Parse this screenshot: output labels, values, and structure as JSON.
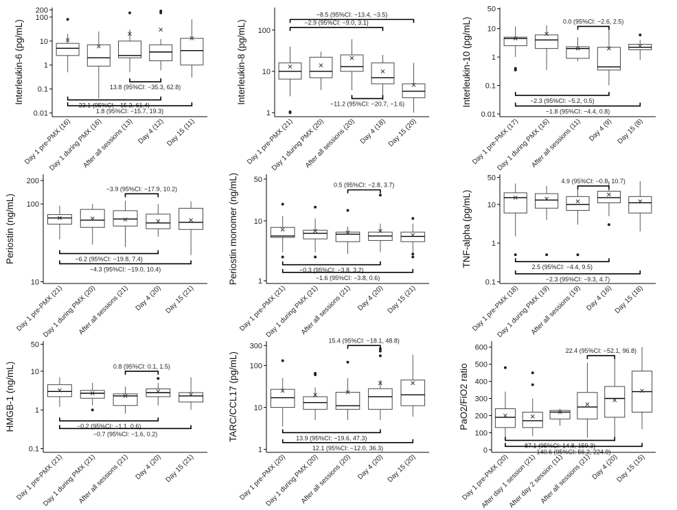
{
  "chart_data": [
    {
      "type": "box",
      "ylabel": "Interleukin-6 (pg/mL)",
      "scale": "log",
      "ylim": [
        0.007,
        250
      ],
      "ticks": [
        {
          "v": 0.01,
          "t": "0.01"
        },
        {
          "v": 0.1,
          "t": "0.1"
        },
        {
          "v": 1,
          "t": "1"
        },
        {
          "v": 10,
          "t": "10"
        },
        {
          "v": 100,
          "t": "100"
        },
        {
          "v": 200,
          "t": "200"
        }
      ],
      "categories": [
        "Day 1 pre-PMX (16)",
        "Day 1 during PMX (16)",
        "After all sessions (13)",
        "Day 4 (12)",
        "Day 15 (11)"
      ],
      "boxes": [
        {
          "whislo": 0.5,
          "q1": 2.5,
          "med": 5,
          "q3": 8,
          "whishi": 20,
          "mean": 11,
          "outliers": [
            80
          ]
        },
        {
          "whislo": 0.04,
          "q1": 0.9,
          "med": 2,
          "q3": 7,
          "whishi": 25,
          "mean": 6,
          "outliers": []
        },
        {
          "whislo": 0.5,
          "q1": 2,
          "med": 2.5,
          "q3": 10,
          "whishi": 30,
          "mean": 20,
          "outliers": [
            150
          ]
        },
        {
          "whislo": 0.6,
          "q1": 1.5,
          "med": 3.5,
          "q3": 7,
          "whishi": 12,
          "mean": 30,
          "outliers": [
            150,
            180
          ]
        },
        {
          "whislo": 0.3,
          "q1": 1,
          "med": 4,
          "q3": 13,
          "whishi": 80,
          "mean": 13,
          "outliers": []
        }
      ],
      "annotations": [
        {
          "from": 2,
          "to": 3,
          "y": 0.2,
          "dir": "up",
          "text": "13.8 (95%CI: −35.3, 62.8)"
        },
        {
          "from": 0,
          "to": 3,
          "y": 0.035,
          "dir": "up",
          "text": "23.1 (95%CI: −15.3, 61.4)"
        },
        {
          "from": 0,
          "to": 4,
          "y": 0.02,
          "dir": "up",
          "text": "1.8 (95%CI: −15.7, 19.3)"
        }
      ]
    },
    {
      "type": "box",
      "ylabel": "Interleukin-8 (pg/mL)",
      "scale": "log",
      "ylim": [
        0.8,
        350
      ],
      "ticks": [
        {
          "v": 1,
          "t": "1"
        },
        {
          "v": 10,
          "t": "10"
        },
        {
          "v": 100,
          "t": "100"
        }
      ],
      "categories": [
        "Day 1 pre-PMX (21)",
        "Day 1 during PMX (20)",
        "After all sessions (20)",
        "Day 4 (18)",
        "Day 15 (20)"
      ],
      "boxes": [
        {
          "whislo": 2.5,
          "q1": 6.5,
          "med": 10,
          "q3": 16,
          "whishi": 40,
          "mean": 13,
          "outliers": [
            1,
            1.05
          ]
        },
        {
          "whislo": 3.5,
          "q1": 7,
          "med": 10,
          "q3": 22,
          "whishi": 30,
          "mean": 14,
          "outliers": []
        },
        {
          "whislo": 3.5,
          "q1": 10,
          "med": 13,
          "q3": 25,
          "whishi": 60,
          "mean": 21,
          "outliers": []
        },
        {
          "whislo": 2,
          "q1": 5,
          "med": 7,
          "q3": 16,
          "whishi": 25,
          "mean": 10,
          "outliers": []
        },
        {
          "whislo": 1,
          "q1": 2.3,
          "med": 3.3,
          "q3": 5,
          "whishi": 16,
          "mean": 4.7,
          "outliers": []
        }
      ],
      "annotations": [
        {
          "from": 0,
          "to": 4,
          "y": 180,
          "dir": "down",
          "text": "−8.5 (95%CI: −13.4, −3.5)"
        },
        {
          "from": 0,
          "to": 3,
          "y": 115,
          "dir": "down",
          "text": "−2.9 (95%CI: −9.0, 3.1)"
        },
        {
          "from": 2,
          "to": 3,
          "y": 2.2,
          "dir": "up",
          "text": "−11.2 (95%CI: −20.7, −1.6)"
        }
      ]
    },
    {
      "type": "box",
      "ylabel": "Interleukin-10 (pg/mL)",
      "scale": "log",
      "ylim": [
        0.008,
        55
      ],
      "ticks": [
        {
          "v": 0.01,
          "t": "0.01"
        },
        {
          "v": 0.1,
          "t": "0.1"
        },
        {
          "v": 1,
          "t": "1"
        },
        {
          "v": 10,
          "t": "10"
        },
        {
          "v": 50,
          "t": "50"
        }
      ],
      "categories": [
        "Day 1 pre-PMX (17)",
        "Day 1 during PMX (16)",
        "After all sessions (11)",
        "Day 4 (9)",
        "Day 15 (8)"
      ],
      "boxes": [
        {
          "whislo": 1,
          "q1": 2.5,
          "med": 4.5,
          "q3": 5,
          "whishi": 12,
          "mean": 4.5,
          "outliers": [
            0.35,
            0.4
          ]
        },
        {
          "whislo": 0.35,
          "q1": 2,
          "med": 4,
          "q3": 6,
          "whishi": 13,
          "mean": 6.5,
          "outliers": []
        },
        {
          "whislo": 0.7,
          "q1": 0.9,
          "med": 2,
          "q3": 2.3,
          "whishi": 5,
          "mean": 2,
          "outliers": []
        },
        {
          "whislo": 0.1,
          "q1": 0.35,
          "med": 0.45,
          "q3": 2.2,
          "whishi": 12,
          "mean": 2,
          "outliers": []
        },
        {
          "whislo": 0.8,
          "q1": 1.8,
          "med": 2.2,
          "q3": 2.8,
          "whishi": 4,
          "mean": 2.4,
          "outliers": [
            6
          ]
        }
      ],
      "annotations": [
        {
          "from": 2,
          "to": 3,
          "y": 12,
          "dir": "down",
          "text": "0.0 (95%CI: −2.6, 2.5)"
        },
        {
          "from": 0,
          "to": 3,
          "y": 0.045,
          "dir": "up",
          "text": "−2.3 (95%CI: −5.2, 0.5)"
        },
        {
          "from": 0,
          "to": 4,
          "y": 0.019,
          "dir": "up",
          "text": "−1.8 (95%CI: −4.4, 0.8)"
        }
      ]
    },
    {
      "type": "box",
      "ylabel": "Periostin (ng/mL)",
      "scale": "log",
      "ylim": [
        9.5,
        240
      ],
      "ticks": [
        {
          "v": 10,
          "t": "10"
        },
        {
          "v": 100,
          "t": "100"
        },
        {
          "v": 200,
          "t": "200"
        }
      ],
      "categories": [
        "Day 1 pre-PMX (21)",
        "Day 1 during PMX (20)",
        "After all sessions (21)",
        "Day 4 (20)",
        "Day 15 (21)"
      ],
      "boxes": [
        {
          "whislo": 35,
          "q1": 55,
          "med": 66,
          "q3": 73,
          "whishi": 95,
          "mean": 66,
          "outliers": []
        },
        {
          "whislo": 30,
          "q1": 50,
          "med": 62,
          "q3": 85,
          "whishi": 100,
          "mean": 65,
          "outliers": []
        },
        {
          "whislo": 28,
          "q1": 52,
          "med": 64,
          "q3": 82,
          "whishi": 110,
          "mean": 63,
          "outliers": []
        },
        {
          "whislo": 38,
          "q1": 48,
          "med": 57,
          "q3": 74,
          "whishi": 100,
          "mean": 60,
          "outliers": []
        },
        {
          "whislo": 22,
          "q1": 47,
          "med": 58,
          "q3": 88,
          "whishi": 108,
          "mean": 62,
          "outliers": []
        }
      ],
      "annotations": [
        {
          "from": 2,
          "to": 3,
          "y": 135,
          "dir": "down",
          "text": "−3.9 (95%CI: −17.9, 10.2)"
        },
        {
          "from": 0,
          "to": 3,
          "y": 23,
          "dir": "up",
          "text": "−6.2 (95%CI: −19.8, 7.4)"
        },
        {
          "from": 0,
          "to": 4,
          "y": 17,
          "dir": "up",
          "text": "−4.3 (95%CI: −19.0, 10.4)"
        }
      ]
    },
    {
      "type": "box",
      "ylabel": "Periostin monomer (ng/mL)",
      "scale": "log",
      "ylim": [
        0.9,
        60
      ],
      "ticks": [
        {
          "v": 1,
          "t": "1"
        },
        {
          "v": 10,
          "t": "10"
        },
        {
          "v": 50,
          "t": "50"
        }
      ],
      "categories": [
        "Day 1 pre-PMX (21)",
        "Day 1 during PMX (21)",
        "After all sessions (21)",
        "Day 4 (20)",
        "Day 15 (21)"
      ],
      "boxes": [
        {
          "whislo": 3,
          "q1": 5.3,
          "med": 5.6,
          "q3": 7.8,
          "whishi": 12,
          "mean": 7.2,
          "outliers": [
            19,
            2.5
          ]
        },
        {
          "whislo": 3,
          "q1": 5,
          "med": 6.2,
          "q3": 7,
          "whishi": 11,
          "mean": 6.8,
          "outliers": [
            17,
            2.5
          ]
        },
        {
          "whislo": 2.8,
          "q1": 4.5,
          "med": 6,
          "q3": 6.5,
          "whishi": 8,
          "mean": 6.4,
          "outliers": [
            15
          ]
        },
        {
          "whislo": 3,
          "q1": 4.7,
          "med": 5.6,
          "q3": 6.5,
          "whishi": 9,
          "mean": 6.8,
          "outliers": [
            27
          ]
        },
        {
          "whislo": 3,
          "q1": 4.5,
          "med": 5.5,
          "q3": 6.5,
          "whishi": 9,
          "mean": 5.8,
          "outliers": [
            11,
            2.5,
            2.8
          ]
        }
      ],
      "annotations": [
        {
          "from": 2,
          "to": 3,
          "y": 33,
          "dir": "down",
          "text": "0.5 (95%CI: −2.8, 3.7)"
        },
        {
          "from": 0,
          "to": 3,
          "y": 1.85,
          "dir": "up",
          "text": "−0.3 (95%CI: −3.8, 3.2)"
        },
        {
          "from": 0,
          "to": 4,
          "y": 1.38,
          "dir": "up",
          "text": "−1.6 (95%CI: −3.8, 0.6)"
        }
      ]
    },
    {
      "type": "box",
      "ylabel": "TNF-alpha (pg/mL)",
      "scale": "log",
      "ylim": [
        0.09,
        60
      ],
      "ticks": [
        {
          "v": 0.1,
          "t": "0.1"
        },
        {
          "v": 1,
          "t": "1"
        },
        {
          "v": 10,
          "t": "10"
        },
        {
          "v": 50,
          "t": "50"
        }
      ],
      "categories": [
        "Day 1 pre-PMX (18)",
        "Day 1 during PMX (19)",
        "After all sessions (19)",
        "Day 4 (16)",
        "Day 15 (18)"
      ],
      "boxes": [
        {
          "whislo": 1.5,
          "q1": 6,
          "med": 15,
          "q3": 20,
          "whishi": 35,
          "mean": 15,
          "outliers": [
            0.5
          ]
        },
        {
          "whislo": 4,
          "q1": 8,
          "med": 13,
          "q3": 19,
          "whishi": 30,
          "mean": 14,
          "outliers": [
            0.5
          ]
        },
        {
          "whislo": 3,
          "q1": 7,
          "med": 10,
          "q3": 16,
          "whishi": 25,
          "mean": 12,
          "outliers": [
            0.5
          ]
        },
        {
          "whislo": 5,
          "q1": 11,
          "med": 15,
          "q3": 22,
          "whishi": 40,
          "mean": 18,
          "outliers": [
            3
          ]
        },
        {
          "whislo": 2,
          "q1": 6,
          "med": 11,
          "q3": 16,
          "whishi": 40,
          "mean": 12,
          "outliers": []
        }
      ],
      "annotations": [
        {
          "from": 2,
          "to": 3,
          "y": 30,
          "dir": "down",
          "text": "4.9 (95%CI: −0.8, 10.7)"
        },
        {
          "from": 0,
          "to": 3,
          "y": 0.33,
          "dir": "up",
          "text": "2.5 (95%CI: −4.4, 9.5)"
        },
        {
          "from": 0,
          "to": 4,
          "y": 0.16,
          "dir": "up",
          "text": "−2.3 (95%CI: −9.3, 4.7)"
        }
      ]
    },
    {
      "type": "box",
      "ylabel": "HMGB-1 (ng/mL)",
      "scale": "log",
      "ylim": [
        0.08,
        60
      ],
      "ticks": [
        {
          "v": 0.1,
          "t": "0.1"
        },
        {
          "v": 1,
          "t": "1"
        },
        {
          "v": 10,
          "t": "10"
        },
        {
          "v": 50,
          "t": "50"
        }
      ],
      "categories": [
        "Day 1 pre-PMX (21)",
        "Day 1 during PMX (21)",
        "After all sessions (21)",
        "Day 4 (20)",
        "Day 15 (21)"
      ],
      "boxes": [
        {
          "whislo": 1.2,
          "q1": 2.2,
          "med": 3,
          "q3": 4.5,
          "whishi": 7,
          "mean": 3.2,
          "outliers": []
        },
        {
          "whislo": 1.3,
          "q1": 2,
          "med": 2.7,
          "q3": 3.2,
          "whishi": 5,
          "mean": 2.7,
          "outliers": [
            1
          ]
        },
        {
          "whislo": 0.8,
          "q1": 1.3,
          "med": 2.3,
          "q3": 2.6,
          "whishi": 4,
          "mean": 2.3,
          "outliers": []
        },
        {
          "whislo": 1.3,
          "q1": 2.2,
          "med": 2.8,
          "q3": 3.5,
          "whishi": 5,
          "mean": 3,
          "outliers": [
            6.5
          ]
        },
        {
          "whislo": 1,
          "q1": 1.6,
          "med": 2.3,
          "q3": 2.8,
          "whishi": 7,
          "mean": 2.5,
          "outliers": []
        }
      ],
      "annotations": [
        {
          "from": 2,
          "to": 3,
          "y": 10,
          "dir": "down",
          "text": "0.8 (95%CI: 0.1, 1.5)"
        },
        {
          "from": 0,
          "to": 3,
          "y": 0.52,
          "dir": "up",
          "text": "−0.2 (95%CI: −1.1, 0.6)"
        },
        {
          "from": 0,
          "to": 4,
          "y": 0.33,
          "dir": "up",
          "text": "−0.7 (95%CI: −1.6, 0.2)"
        }
      ]
    },
    {
      "type": "box",
      "ylabel": "TARC/CCL17 (pg/mL)",
      "scale": "log",
      "ylim": [
        0.85,
        380
      ],
      "ticks": [
        {
          "v": 1,
          "t": "1"
        },
        {
          "v": 10,
          "t": "10"
        },
        {
          "v": 100,
          "t": "100"
        },
        {
          "v": 300,
          "t": "300"
        }
      ],
      "categories": [
        "Day 1 pre-PMX (20)",
        "Day 1 during PMX (20)",
        "After all sessions (20)",
        "Day 4 (20)",
        "Day 15 (20)"
      ],
      "boxes": [
        {
          "whislo": 3.5,
          "q1": 10,
          "med": 17,
          "q3": 27,
          "whishi": 50,
          "mean": 25,
          "outliers": [
            130
          ]
        },
        {
          "whislo": 5,
          "q1": 9,
          "med": 13,
          "q3": 18,
          "whishi": 30,
          "mean": 20,
          "outliers": [
            60,
            65
          ]
        },
        {
          "whislo": 5,
          "q1": 9,
          "med": 11,
          "q3": 23,
          "whishi": 50,
          "mean": 23,
          "outliers": [
            120
          ]
        },
        {
          "whislo": 5,
          "q1": 9,
          "med": 18,
          "q3": 28,
          "whishi": 45,
          "mean": 38,
          "outliers": [
            170,
            220,
            250
          ]
        },
        {
          "whislo": 6,
          "q1": 11,
          "med": 20,
          "q3": 45,
          "whishi": 180,
          "mean": 38,
          "outliers": []
        }
      ],
      "annotations": [
        {
          "from": 2,
          "to": 3,
          "y": 300,
          "dir": "down",
          "text": "15.4 (95%CI: −18.1, 48.8)"
        },
        {
          "from": 0,
          "to": 3,
          "y": 2.5,
          "dir": "up",
          "text": "13.9 (95%CI: −19.6, 47.3)"
        },
        {
          "from": 0,
          "to": 4,
          "y": 1.45,
          "dir": "up",
          "text": "12.1 (95%CI: −12.0, 36.3)"
        }
      ]
    },
    {
      "type": "box",
      "ylabel": "PaO2/FiO2 ratio",
      "scale": "linear",
      "ylim": [
        -15,
        635
      ],
      "ticks": [
        {
          "v": 0,
          "t": "0"
        },
        {
          "v": 100,
          "t": "100"
        },
        {
          "v": 200,
          "t": "200"
        },
        {
          "v": 300,
          "t": "300"
        },
        {
          "v": 400,
          "t": "400"
        },
        {
          "v": 500,
          "t": "500"
        },
        {
          "v": 600,
          "t": "600"
        }
      ],
      "categories": [
        "Day 1 pre-PMX (20)",
        "After day 1 session (21)",
        "After day 2 session (11)",
        "After all sessions (21)",
        "Day 4 (20)",
        "Day 15 (15)"
      ],
      "boxes": [
        {
          "whislo": 60,
          "q1": 130,
          "med": 190,
          "q3": 240,
          "whishi": 340,
          "mean": 200,
          "outliers": [
            480
          ]
        },
        {
          "whislo": 80,
          "q1": 130,
          "med": 170,
          "q3": 220,
          "whishi": 300,
          "mean": 195,
          "outliers": [
            450,
            380
          ]
        },
        {
          "whislo": 140,
          "q1": 180,
          "med": 220,
          "q3": 230,
          "whishi": 240,
          "mean": 220,
          "outliers": []
        },
        {
          "whislo": 70,
          "q1": 180,
          "med": 250,
          "q3": 335,
          "whishi": 510,
          "mean": 265,
          "outliers": []
        },
        {
          "whislo": 50,
          "q1": 190,
          "med": 300,
          "q3": 370,
          "whishi": 550,
          "mean": 290,
          "outliers": []
        },
        {
          "whislo": 120,
          "q1": 220,
          "med": 340,
          "q3": 460,
          "whishi": 600,
          "mean": 345,
          "outliers": []
        }
      ],
      "annotations": [
        {
          "from": 3,
          "to": 4,
          "y": 550,
          "dir": "down",
          "text": "22.4 (95%CI: −52.1, 96.8)"
        },
        {
          "from": 0,
          "to": 4,
          "y": 55,
          "dir": "up",
          "text": "87.1 (95%CI: 14.8, 159.3)"
        },
        {
          "from": 0,
          "to": 5,
          "y": 20,
          "dir": "up",
          "text": "140.6 (95%CI: 56.2, 224.9)"
        }
      ]
    }
  ]
}
